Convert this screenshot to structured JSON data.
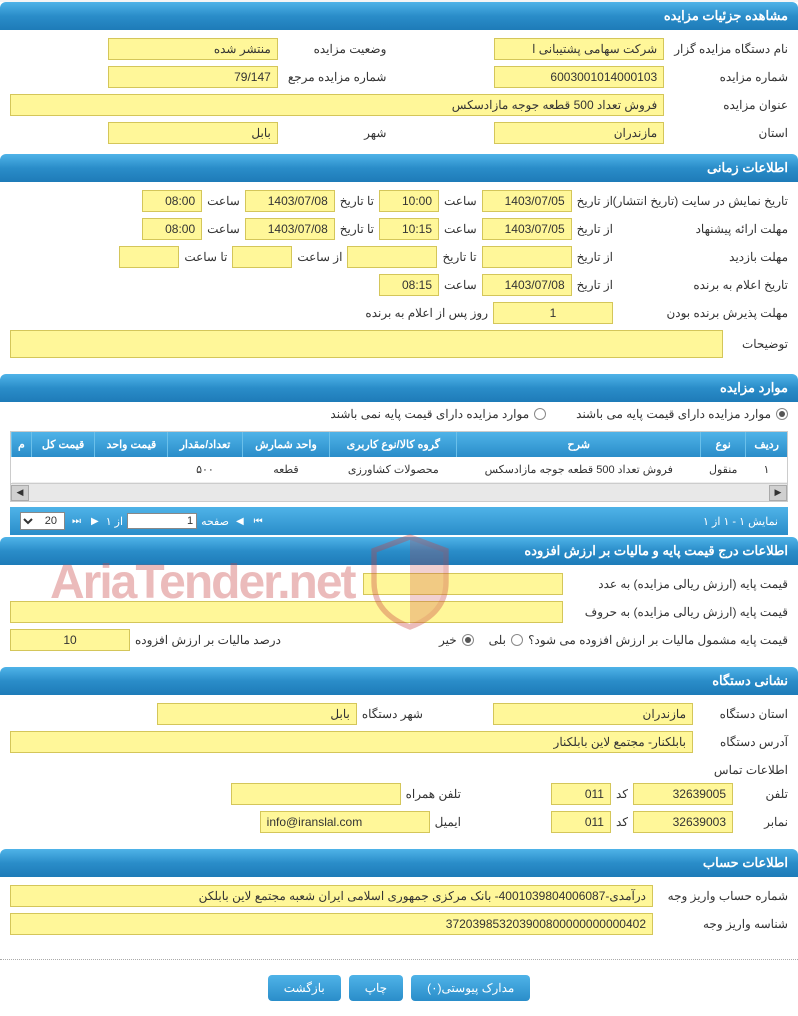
{
  "colors": {
    "header_gradient_top": "#4fb3e8",
    "header_gradient_bottom": "#2a8dc9",
    "field_bg": "#fff799",
    "field_border": "#d4c65a",
    "watermark": "#c84040"
  },
  "sections": {
    "details": {
      "title": "مشاهده جزئیات مزایده",
      "org_label": "نام دستگاه مزایده گزار",
      "org_value": "شرکت سهامی پشتیبانی ا",
      "status_label": "وضعیت مزایده",
      "status_value": "منتشر شده",
      "auction_no_label": "شماره مزایده",
      "auction_no_value": "6003001014000103",
      "ref_no_label": "شماره مزایده مرجع",
      "ref_no_value": "79/147",
      "subject_label": "عنوان مزایده",
      "subject_value": "فروش تعداد 500 قطعه جوجه مازادسکس",
      "province_label": "استان",
      "province_value": "مازندران",
      "city_label": "شهر",
      "city_value": "بابل"
    },
    "timing": {
      "title": "اطلاعات زمانی",
      "publish_label": "تاریخ نمایش در سایت (تاریخ انتشار)",
      "from_date_label": "از تاریخ",
      "to_date_label": "تا تاریخ",
      "time_label": "ساعت",
      "from_time_label": "از ساعت",
      "to_time_label": "تا ساعت",
      "publish_from_date": "1403/07/05",
      "publish_from_time": "10:00",
      "publish_to_date": "1403/07/08",
      "publish_to_time": "08:00",
      "offer_label": "مهلت ارائه پیشنهاد",
      "offer_from_date": "1403/07/05",
      "offer_from_time": "10:15",
      "offer_to_date": "1403/07/08",
      "offer_to_time": "08:00",
      "visit_label": "مهلت بازدید",
      "visit_from_date": "",
      "visit_to_date": "",
      "visit_from_time": "",
      "visit_to_time": "",
      "winner_label": "تاریخ اعلام به برنده",
      "winner_from_date": "1403/07/08",
      "winner_time": "08:15",
      "accept_label": "مهلت پذیرش برنده بودن",
      "accept_value": "1",
      "accept_suffix": "روز پس از اعلام به برنده",
      "notes_label": "توضیحات",
      "notes_value": ""
    },
    "items": {
      "title": "موارد مزایده",
      "radio1": "موارد مزایده دارای قیمت پایه می باشند",
      "radio2": "موارد مزایده دارای قیمت پایه نمی باشند",
      "columns": [
        "ردیف",
        "نوع",
        "شرح",
        "گروه کالا/نوع کاربری",
        "واحد شمارش",
        "تعداد/مقدار",
        "قیمت واحد",
        "قیمت کل",
        "م"
      ],
      "rows": [
        [
          "۱",
          "منقول",
          "فروش تعداد 500 قطعه جوجه مازادسکس",
          "محصولات کشاورزی",
          "قطعه",
          "۵۰۰",
          "",
          "",
          ""
        ]
      ],
      "pager_info": "نمایش ۱ - ۱ از ۱",
      "page_label": "صفحه",
      "page_value": "1",
      "of_label": "از ۱",
      "page_size": "20"
    },
    "pricing": {
      "title": "اطلاعات درج قیمت پایه و مالیات بر ارزش افزوده",
      "base_num_label": "قیمت پایه (ارزش ریالی مزایده) به عدد",
      "base_num_value": "",
      "base_word_label": "قیمت پایه (ارزش ریالی مزایده) به حروف",
      "base_word_value": "",
      "vat_q_label": "قیمت پایه مشمول مالیات بر ارزش افزوده می شود؟",
      "yes_label": "بلی",
      "no_label": "خیر",
      "vat_pct_label": "درصد مالیات بر ارزش افزوده",
      "vat_pct_value": "10"
    },
    "address": {
      "title": "نشانی دستگاه",
      "province_label": "استان دستگاه",
      "province_value": "مازندران",
      "city_label": "شهر دستگاه",
      "city_value": "بابل",
      "addr_label": "آدرس دستگاه",
      "addr_value": "بابلکنار- مجتمع لاین بابلکنار",
      "contact_label": "اطلاعات تماس",
      "phone_label": "تلفن",
      "phone_value": "32639005",
      "code_label": "کد",
      "phone_code": "011",
      "mobile_label": "تلفن همراه",
      "mobile_value": "",
      "fax_label": "نمابر",
      "fax_value": "32639003",
      "fax_code": "011",
      "email_label": "ایمیل",
      "email_value": "info@iranslal.com"
    },
    "account": {
      "title": "اطلاعات حساب",
      "acc_label": "شماره حساب واریز وجه",
      "acc_value": "درآمدی-4001039804006087- بانک مرکزی جمهوری اسلامی ایران شعبه مجتمع لاین بابلکن",
      "id_label": "شناسه واریز وجه",
      "id_value": "372039853203900800000000000402"
    }
  },
  "buttons": {
    "attachments": "مدارک پیوستی(۰)",
    "print": "چاپ",
    "back": "بازگشت"
  },
  "watermark_text": "AriaTender.net"
}
